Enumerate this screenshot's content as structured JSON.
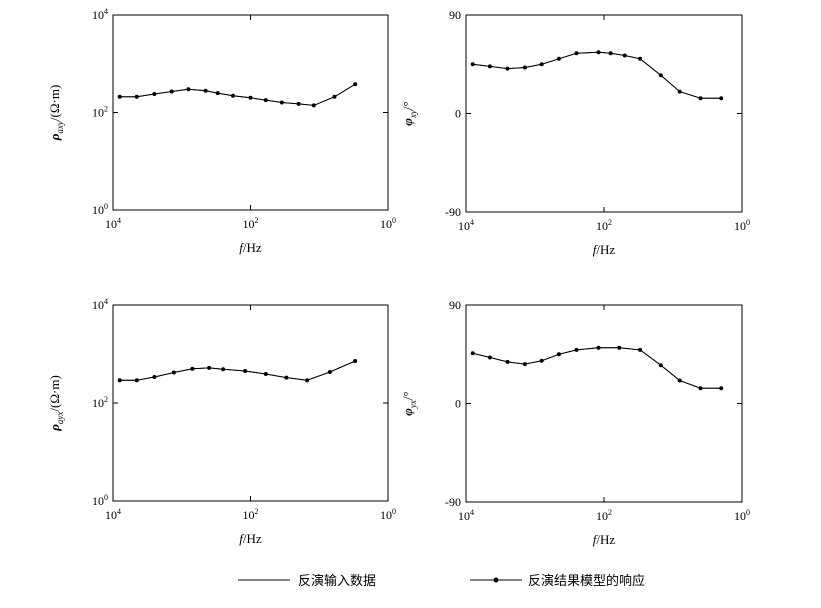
{
  "legend": {
    "input_label": "反演输入数据",
    "model_label": "反演结果模型的响应"
  },
  "chart_data": [
    {
      "type": "line",
      "panel": "rho_xy",
      "xlabel": "f/Hz",
      "ylabel": "ρ_axy/(Ω·m)",
      "x_scale": "log-reversed",
      "y_scale": "log",
      "xlim": [
        10000,
        1
      ],
      "ylim": [
        1,
        10000
      ],
      "x_ticks": [
        "10^4",
        "10^2",
        "10^0"
      ],
      "y_ticks": [
        "10^4",
        "10^2",
        "10^0"
      ],
      "x": [
        8000,
        4500,
        2500,
        1400,
        800,
        450,
        300,
        180,
        100,
        60,
        35,
        20,
        12,
        6,
        3
      ],
      "series": [
        {
          "values": [
            210,
            210,
            240,
            270,
            300,
            280,
            250,
            220,
            200,
            180,
            160,
            150,
            140,
            210,
            380
          ]
        },
        {
          "values": [
            210,
            210,
            240,
            270,
            300,
            280,
            250,
            220,
            200,
            180,
            160,
            150,
            140,
            210,
            380
          ]
        }
      ]
    },
    {
      "type": "line",
      "panel": "phi_xy",
      "xlabel": "f/Hz",
      "ylabel": "φ_xy/°",
      "x_scale": "log-reversed",
      "xlim": [
        10000,
        1
      ],
      "ylim": [
        -90,
        90
      ],
      "x_ticks": [
        "10^4",
        "10^2",
        "10^0"
      ],
      "y_ticks": [
        "90",
        "0",
        "-90"
      ],
      "x": [
        8000,
        4500,
        2500,
        1400,
        800,
        450,
        250,
        120,
        80,
        50,
        30,
        15,
        8,
        4,
        2
      ],
      "series": [
        {
          "values": [
            45,
            43,
            41,
            42,
            45,
            50,
            55,
            56,
            55,
            53,
            50,
            35,
            20,
            14,
            14
          ]
        },
        {
          "values": [
            45,
            43,
            41,
            42,
            45,
            50,
            55,
            56,
            55,
            53,
            50,
            35,
            20,
            14,
            14
          ]
        }
      ]
    },
    {
      "type": "line",
      "panel": "rho_yx",
      "xlabel": "f/Hz",
      "ylabel": "ρ_ayx/(Ω·m)",
      "x_scale": "log-reversed",
      "y_scale": "log",
      "xlim": [
        10000,
        1
      ],
      "ylim": [
        1,
        10000
      ],
      "x_ticks": [
        "10^4",
        "10^2",
        "10^0"
      ],
      "y_ticks": [
        "10^4",
        "10^2",
        "10^0"
      ],
      "x": [
        8000,
        4500,
        2500,
        1300,
        700,
        400,
        250,
        120,
        60,
        30,
        15,
        7,
        3
      ],
      "series": [
        {
          "values": [
            290,
            290,
            340,
            420,
            500,
            520,
            490,
            450,
            390,
            330,
            290,
            430,
            720
          ]
        },
        {
          "values": [
            290,
            290,
            340,
            420,
            500,
            520,
            490,
            450,
            390,
            330,
            290,
            430,
            720
          ]
        }
      ]
    },
    {
      "type": "line",
      "panel": "phi_yx",
      "xlabel": "f/Hz",
      "ylabel": "φ_yx/°",
      "x_scale": "log-reversed",
      "xlim": [
        10000,
        1
      ],
      "ylim": [
        -90,
        90
      ],
      "x_ticks": [
        "10^4",
        "10^2",
        "10^0"
      ],
      "y_ticks": [
        "90",
        "0",
        "-90"
      ],
      "x": [
        8000,
        4500,
        2500,
        1400,
        800,
        450,
        250,
        120,
        60,
        30,
        15,
        8,
        4,
        2
      ],
      "series": [
        {
          "values": [
            46,
            42,
            38,
            36,
            39,
            45,
            49,
            51,
            51,
            49,
            35,
            21,
            14,
            14
          ]
        },
        {
          "values": [
            46,
            42,
            38,
            36,
            39,
            45,
            49,
            51,
            51,
            49,
            35,
            21,
            14,
            14
          ]
        }
      ]
    }
  ]
}
